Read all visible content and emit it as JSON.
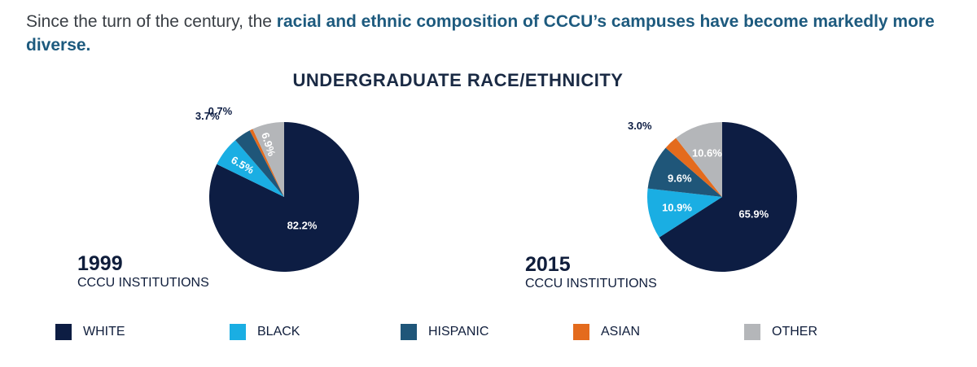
{
  "intro": {
    "lead": "Since the turn of the century, the ",
    "emphasis": "racial and ethnic composition of CCCU’s campuses have become markedly more diverse."
  },
  "chart_title": "UNDERGRADUATE RACE/ETHNICITY",
  "colors": {
    "WHITE": "#0d1d43",
    "BLACK": "#1aaee3",
    "HISPANIC": "#1f5679",
    "ASIAN": "#e46b1d",
    "OTHER": "#b4b6b9"
  },
  "legend": [
    "WHITE",
    "BLACK",
    "HISPANIC",
    "ASIAN",
    "OTHER"
  ],
  "chart_data": [
    {
      "type": "pie",
      "year": "1999",
      "subtitle": "CCCU INSTITUTIONS",
      "categories": [
        "WHITE",
        "BLACK",
        "HISPANIC",
        "ASIAN",
        "OTHER"
      ],
      "values": [
        82.2,
        6.5,
        3.7,
        0.7,
        6.9
      ],
      "labels": [
        "82.2%",
        "6.5%",
        "3.7%",
        "0.7%",
        "6.9%"
      ]
    },
    {
      "type": "pie",
      "year": "2015",
      "subtitle": "CCCU INSTITUTIONS",
      "categories": [
        "WHITE",
        "BLACK",
        "HISPANIC",
        "ASIAN",
        "OTHER"
      ],
      "values": [
        65.9,
        10.9,
        9.6,
        3.0,
        10.6
      ],
      "labels": [
        "65.9%",
        "10.9%",
        "9.6%",
        "3.0%",
        "10.6%"
      ]
    }
  ]
}
